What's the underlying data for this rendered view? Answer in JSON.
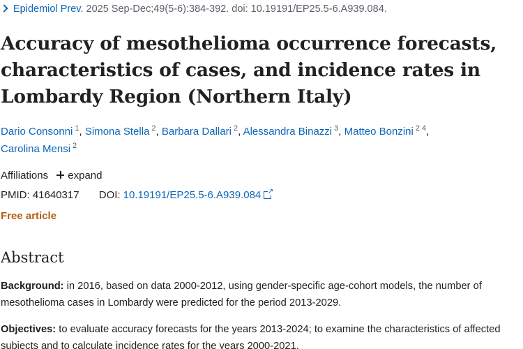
{
  "journal": {
    "name": "Epidemiol Prev.",
    "citation": "2025 Sep-Dec;49(5-6):384-392. doi: 10.19191/EP25.5-6.A939.084."
  },
  "article": {
    "title": "Accuracy of mesothelioma occurrence forecasts, characteristics of cases, and incidence rates in Lombardy Region (Northern Italy)"
  },
  "authors": [
    {
      "name": "Dario Consonni",
      "affiliations": "1"
    },
    {
      "name": "Simona Stella",
      "affiliations": "2"
    },
    {
      "name": "Barbara Dallari",
      "affiliations": "2"
    },
    {
      "name": "Alessandra Binazzi",
      "affiliations": "3"
    },
    {
      "name": "Matteo Bonzini",
      "affiliations": "2 4"
    },
    {
      "name": "Carolina Mensi",
      "affiliations": "2"
    }
  ],
  "affiliations": {
    "label": "Affiliations",
    "expand_label": "expand"
  },
  "identifiers": {
    "pmid_label": "PMID:",
    "pmid": "41640317",
    "doi_label": "DOI:",
    "doi": "10.19191/EP25.5-6.A939.084"
  },
  "free_article": "Free article",
  "abstract": {
    "heading": "Abstract",
    "background_label": "Background:",
    "background_text": " in 2016, based on data 2000-2012, using gender-specific age-cohort models, the number of mesothelioma cases in Lombardy were predicted for the period 2013-2029.",
    "objectives_label": "Objectives:",
    "objectives_text": " to evaluate accuracy forecasts for the years 2013-2024; to examine the characteristics of affected subjects and to calculate incidence rates for the years 2000-2021."
  },
  "colors": {
    "link": "#0b66b8",
    "free_article": "#b25f10",
    "text": "#212121",
    "muted": "#5b616b"
  },
  "icons": {
    "journal": "chevron-right-icon",
    "affiliations_expand": "plus-icon",
    "doi_link": "external-link-icon"
  }
}
